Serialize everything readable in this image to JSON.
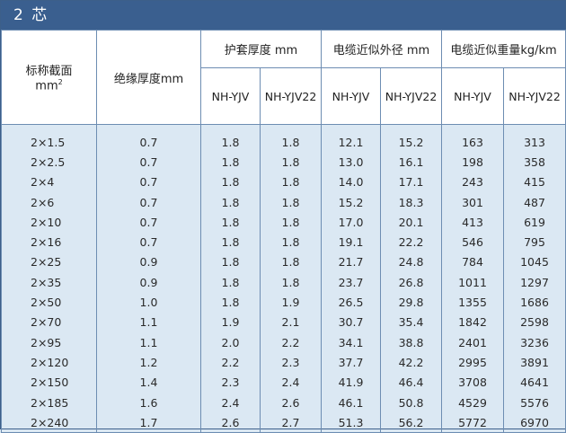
{
  "title": "2 芯",
  "headers": {
    "section": "标称截面",
    "section_unit": "mm",
    "section_unit_sup": "2",
    "insulation": "绝缘厚度mm",
    "sheath": "护套厚度 mm",
    "outer_diameter": "电缆近似外径 mm",
    "weight": "电缆近似重量kg/km",
    "nh_yjv": "NH-YJV",
    "nh_yjv22": "NH-YJV22"
  },
  "rows": [
    {
      "size": "2×1.5",
      "ins": "0.7",
      "sh1": "1.8",
      "sh2": "1.8",
      "od1": "12.1",
      "od2": "15.2",
      "w1": "163",
      "w2": "313"
    },
    {
      "size": "2×2.5",
      "ins": "0.7",
      "sh1": "1.8",
      "sh2": "1.8",
      "od1": "13.0",
      "od2": "16.1",
      "w1": "198",
      "w2": "358"
    },
    {
      "size": "2×4",
      "ins": "0.7",
      "sh1": "1.8",
      "sh2": "1.8",
      "od1": "14.0",
      "od2": "17.1",
      "w1": "243",
      "w2": "415"
    },
    {
      "size": "2×6",
      "ins": "0.7",
      "sh1": "1.8",
      "sh2": "1.8",
      "od1": "15.2",
      "od2": "18.3",
      "w1": "301",
      "w2": "487"
    },
    {
      "size": "2×10",
      "ins": "0.7",
      "sh1": "1.8",
      "sh2": "1.8",
      "od1": "17.0",
      "od2": "20.1",
      "w1": "413",
      "w2": "619"
    },
    {
      "size": "2×16",
      "ins": "0.7",
      "sh1": "1.8",
      "sh2": "1.8",
      "od1": "19.1",
      "od2": "22.2",
      "w1": "546",
      "w2": "795"
    },
    {
      "size": "2×25",
      "ins": "0.9",
      "sh1": "1.8",
      "sh2": "1.8",
      "od1": "21.7",
      "od2": "24.8",
      "w1": "784",
      "w2": "1045"
    },
    {
      "size": "2×35",
      "ins": "0.9",
      "sh1": "1.8",
      "sh2": "1.8",
      "od1": "23.7",
      "od2": "26.8",
      "w1": "1011",
      "w2": "1297"
    },
    {
      "size": "2×50",
      "ins": "1.0",
      "sh1": "1.8",
      "sh2": "1.9",
      "od1": "26.5",
      "od2": "29.8",
      "w1": "1355",
      "w2": "1686"
    },
    {
      "size": "2×70",
      "ins": "1.1",
      "sh1": "1.9",
      "sh2": "2.1",
      "od1": "30.7",
      "od2": "35.4",
      "w1": "1842",
      "w2": "2598"
    },
    {
      "size": "2×95",
      "ins": "1.1",
      "sh1": "2.0",
      "sh2": "2.2",
      "od1": "34.1",
      "od2": "38.8",
      "w1": "2401",
      "w2": "3236"
    },
    {
      "size": "2×120",
      "ins": "1.2",
      "sh1": "2.2",
      "sh2": "2.3",
      "od1": "37.7",
      "od2": "42.2",
      "w1": "2995",
      "w2": "3891"
    },
    {
      "size": "2×150",
      "ins": "1.4",
      "sh1": "2.3",
      "sh2": "2.4",
      "od1": "41.9",
      "od2": "46.4",
      "w1": "3708",
      "w2": "4641"
    },
    {
      "size": "2×185",
      "ins": "1.6",
      "sh1": "2.4",
      "sh2": "2.6",
      "od1": "46.1",
      "od2": "50.8",
      "w1": "4529",
      "w2": "5576"
    },
    {
      "size": "2×240",
      "ins": "1.7",
      "sh1": "2.6",
      "sh2": "2.7",
      "od1": "51.3",
      "od2": "56.2",
      "w1": "5772",
      "w2": "6970"
    }
  ]
}
